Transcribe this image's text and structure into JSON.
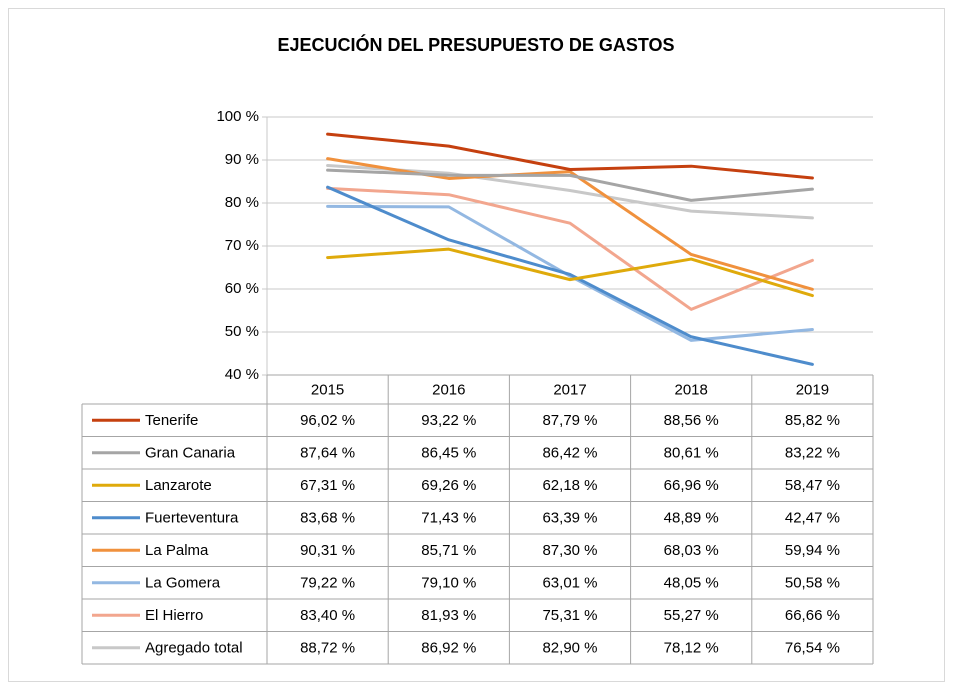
{
  "chart_data": {
    "type": "line",
    "title": "EJECUCIÓN DEL PRESUPUESTO DE GASTOS",
    "categories": [
      "2015",
      "2016",
      "2017",
      "2018",
      "2019"
    ],
    "ylim": [
      40,
      100
    ],
    "yticks": [
      {
        "value": 40,
        "label": "40 %"
      },
      {
        "value": 50,
        "label": "50 %"
      },
      {
        "value": 60,
        "label": "60 %"
      },
      {
        "value": 70,
        "label": "70 %"
      },
      {
        "value": 80,
        "label": "80 %"
      },
      {
        "value": 90,
        "label": "90 %"
      },
      {
        "value": 100,
        "label": "100 %"
      }
    ],
    "grid": true,
    "series": [
      {
        "name": "Tenerife",
        "color": "#c5400f",
        "values": [
          96.02,
          93.22,
          87.79,
          88.56,
          85.82
        ],
        "value_labels": [
          "96,02 %",
          "93,22 %",
          "87,79 %",
          "88,56 %",
          "85,82 %"
        ]
      },
      {
        "name": "Gran Canaria",
        "color": "#a5a5a5",
        "values": [
          87.64,
          86.45,
          86.42,
          80.61,
          83.22
        ],
        "value_labels": [
          "87,64 %",
          "86,45 %",
          "86,42 %",
          "80,61 %",
          "83,22 %"
        ]
      },
      {
        "name": "Lanzarote",
        "color": "#dfaa0b",
        "values": [
          67.31,
          69.26,
          62.18,
          66.96,
          58.47
        ],
        "value_labels": [
          "67,31 %",
          "69,26 %",
          "62,18 %",
          "66,96 %",
          "58,47 %"
        ]
      },
      {
        "name": "Fuerteventura",
        "color": "#4e8ccc",
        "values": [
          83.68,
          71.43,
          63.39,
          48.89,
          42.47
        ],
        "value_labels": [
          "83,68 %",
          "71,43 %",
          "63,39 %",
          "48,89 %",
          "42,47 %"
        ]
      },
      {
        "name": "La Palma",
        "color": "#f0913d",
        "values": [
          90.31,
          85.71,
          87.3,
          68.03,
          59.94
        ],
        "value_labels": [
          "90,31 %",
          "85,71 %",
          "87,30 %",
          "68,03 %",
          "59,94 %"
        ]
      },
      {
        "name": "La Gomera",
        "color": "#93b8e2",
        "values": [
          79.22,
          79.1,
          63.01,
          48.05,
          50.58
        ],
        "value_labels": [
          "79,22 %",
          "79,10 %",
          "63,01 %",
          "48,05 %",
          "50,58 %"
        ]
      },
      {
        "name": "El Hierro",
        "color": "#f2a68e",
        "values": [
          83.4,
          81.93,
          75.31,
          55.27,
          66.66
        ],
        "value_labels": [
          "83,40 %",
          "81,93 %",
          "75,31 %",
          "55,27 %",
          "66,66 %"
        ]
      },
      {
        "name": "Agregado total",
        "color": "#c8c8c8",
        "values": [
          88.72,
          86.92,
          82.9,
          78.12,
          76.54
        ],
        "value_labels": [
          "88,72 %",
          "86,92 %",
          "82,90 %",
          "78,12 %",
          "76,54 %"
        ]
      }
    ]
  }
}
